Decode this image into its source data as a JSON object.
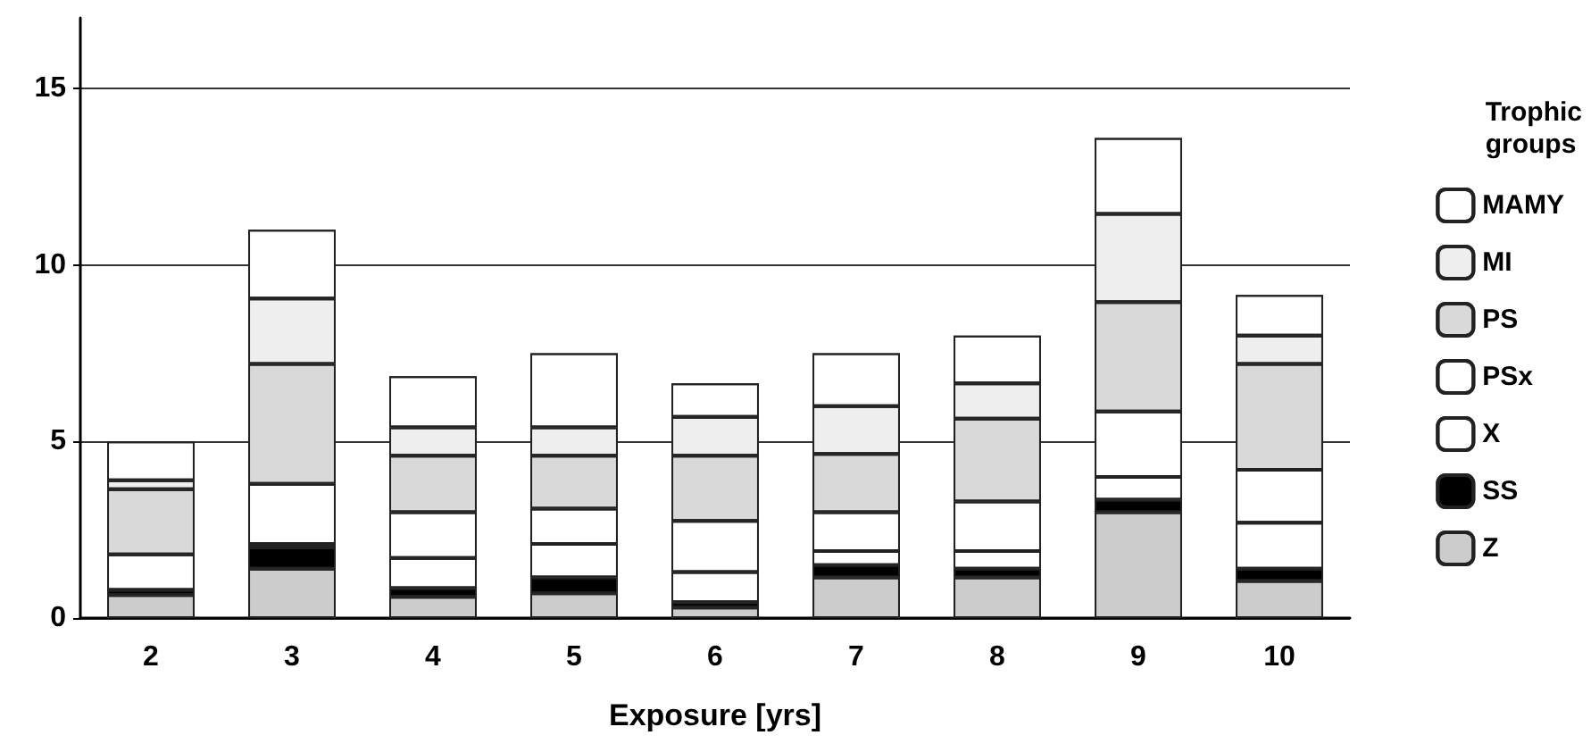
{
  "chart_data": {
    "type": "bar",
    "stacked": true,
    "xlabel": "Exposure [yrs]",
    "legend_title": "Trophic groups",
    "categories": [
      "2",
      "3",
      "4",
      "5",
      "6",
      "7",
      "8",
      "9",
      "10"
    ],
    "series": [
      {
        "name": "Z",
        "color": "#cccccc",
        "values": [
          0.65,
          1.4,
          0.6,
          0.7,
          0.3,
          1.15,
          1.15,
          3.0,
          1.05
        ]
      },
      {
        "name": "SS",
        "color": "#000000",
        "values": [
          0.15,
          0.6,
          0.25,
          0.45,
          0.15,
          0.35,
          0.25,
          0.35,
          0.35
        ]
      },
      {
        "name": "X",
        "color": "#ffffff",
        "values": [
          0,
          0.1,
          0.85,
          0.95,
          0.85,
          0.4,
          0.5,
          0.65,
          1.3
        ]
      },
      {
        "name": "PSx",
        "color": "#ffffff",
        "values": [
          1.0,
          1.7,
          1.3,
          1.0,
          1.45,
          1.1,
          1.4,
          1.85,
          1.5
        ]
      },
      {
        "name": "PS",
        "color": "#d9d9d9",
        "values": [
          1.85,
          3.4,
          1.6,
          1.5,
          1.85,
          1.65,
          2.35,
          3.1,
          3.0
        ]
      },
      {
        "name": "MI",
        "color": "#eeeeee",
        "values": [
          0.25,
          1.85,
          0.8,
          0.8,
          1.1,
          1.35,
          1.0,
          2.5,
          0.8
        ]
      },
      {
        "name": "MAMY",
        "color": "#ffffff",
        "values": [
          1.1,
          1.95,
          1.45,
          2.1,
          0.95,
          1.5,
          1.35,
          2.15,
          1.15
        ]
      }
    ],
    "ylim": [
      0,
      17
    ],
    "yticks": [
      0,
      5,
      10,
      15
    ],
    "grid": "y",
    "legend": "right"
  }
}
